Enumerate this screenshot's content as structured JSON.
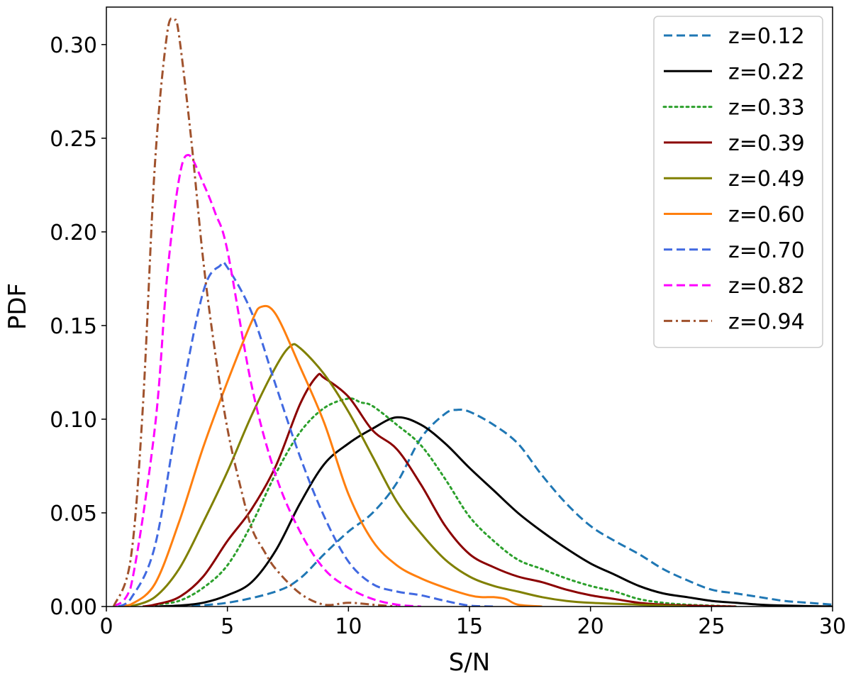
{
  "chart_data": {
    "type": "line",
    "title": "",
    "xlabel": "S/N",
    "ylabel": "PDF",
    "xlim": [
      0,
      30
    ],
    "ylim": [
      0,
      0.32
    ],
    "xticks": [
      0,
      5,
      10,
      15,
      20,
      25,
      30
    ],
    "xtick_labels": [
      "0",
      "5",
      "10",
      "15",
      "20",
      "25",
      "30"
    ],
    "yticks": [
      0,
      0.05,
      0.1,
      0.15,
      0.2,
      0.25,
      0.3
    ],
    "ytick_labels": [
      "0.00",
      "0.05",
      "0.10",
      "0.15",
      "0.20",
      "0.25",
      "0.30"
    ],
    "grid": false,
    "legend_position": "top-right",
    "series": [
      {
        "name": "z=0.12",
        "color": "#1f77b4",
        "style": "dashed",
        "x": [
          3,
          5,
          7,
          8,
          9,
          10,
          11,
          12,
          13,
          14,
          14.5,
          15,
          16,
          17,
          18,
          19,
          20,
          21,
          22,
          23,
          24,
          25,
          26,
          27,
          28,
          29,
          30
        ],
        "y": [
          0,
          0.002,
          0.008,
          0.015,
          0.028,
          0.04,
          0.05,
          0.066,
          0.09,
          0.103,
          0.105,
          0.104,
          0.097,
          0.087,
          0.07,
          0.055,
          0.043,
          0.035,
          0.028,
          0.02,
          0.014,
          0.009,
          0.007,
          0.005,
          0.003,
          0.002,
          0.001
        ]
      },
      {
        "name": "z=0.22",
        "color": "#000000",
        "style": "solid",
        "x": [
          2,
          3,
          4,
          5,
          6,
          7,
          8,
          9,
          10,
          11,
          12,
          13,
          14,
          15,
          16,
          17,
          18,
          19,
          20,
          21,
          22,
          23,
          24,
          25,
          26,
          27,
          28,
          30
        ],
        "y": [
          0,
          0.0005,
          0.002,
          0.006,
          0.013,
          0.03,
          0.055,
          0.076,
          0.087,
          0.095,
          0.101,
          0.097,
          0.087,
          0.074,
          0.062,
          0.05,
          0.04,
          0.031,
          0.023,
          0.017,
          0.011,
          0.007,
          0.005,
          0.003,
          0.002,
          0.001,
          0.0005,
          0
        ]
      },
      {
        "name": "z=0.33",
        "color": "#2ca02c",
        "style": "dotted",
        "x": [
          2,
          3,
          4,
          5,
          6,
          7,
          8,
          9,
          10,
          10.5,
          11,
          12,
          13,
          14,
          15,
          16,
          17,
          18,
          19,
          20,
          21,
          22,
          23,
          24,
          26
        ],
        "y": [
          0.001,
          0.003,
          0.01,
          0.022,
          0.044,
          0.071,
          0.093,
          0.106,
          0.111,
          0.109,
          0.107,
          0.097,
          0.086,
          0.068,
          0.048,
          0.035,
          0.025,
          0.02,
          0.015,
          0.011,
          0.008,
          0.004,
          0.002,
          0.001,
          0
        ]
      },
      {
        "name": "z=0.39",
        "color": "#8b0000",
        "style": "solid",
        "x": [
          1.5,
          2,
          3,
          4,
          5,
          6,
          7,
          8,
          8.7,
          9,
          10,
          11,
          12,
          13,
          14,
          15,
          16,
          17,
          18,
          19,
          20,
          21,
          22,
          23,
          24,
          26
        ],
        "y": [
          0,
          0.001,
          0.005,
          0.016,
          0.035,
          0.052,
          0.075,
          0.108,
          0.123,
          0.122,
          0.112,
          0.094,
          0.084,
          0.065,
          0.043,
          0.028,
          0.021,
          0.016,
          0.013,
          0.009,
          0.006,
          0.004,
          0.002,
          0.001,
          0.0005,
          0
        ]
      },
      {
        "name": "z=0.49",
        "color": "#808000",
        "style": "solid",
        "x": [
          1,
          2,
          3,
          4,
          5,
          6,
          7,
          7.6,
          8,
          9,
          10,
          11,
          12,
          13,
          14,
          15,
          16,
          17,
          18,
          19,
          20,
          22,
          24
        ],
        "y": [
          0,
          0.005,
          0.02,
          0.045,
          0.072,
          0.102,
          0.128,
          0.139,
          0.138,
          0.124,
          0.104,
          0.08,
          0.056,
          0.039,
          0.025,
          0.016,
          0.011,
          0.008,
          0.005,
          0.003,
          0.002,
          0.001,
          0
        ]
      },
      {
        "name": "z=0.60",
        "color": "#ff7f0e",
        "style": "solid",
        "x": [
          0.5,
          1,
          2,
          3,
          4,
          5,
          6,
          6.4,
          7,
          8,
          9,
          10,
          11,
          12,
          13,
          14,
          15,
          15.5,
          16,
          16.5,
          17,
          18
        ],
        "y": [
          0,
          0.001,
          0.012,
          0.045,
          0.085,
          0.12,
          0.152,
          0.16,
          0.156,
          0.128,
          0.098,
          0.06,
          0.035,
          0.022,
          0.015,
          0.01,
          0.006,
          0.005,
          0.005,
          0.004,
          0.001,
          0
        ]
      },
      {
        "name": "z=0.70",
        "color": "#4169e1",
        "style": "dashed",
        "x": [
          0.5,
          1,
          2,
          3,
          4,
          4.7,
          5,
          6,
          7,
          8,
          9,
          10,
          11,
          12,
          13,
          14,
          15,
          16
        ],
        "y": [
          0,
          0.004,
          0.032,
          0.105,
          0.168,
          0.182,
          0.181,
          0.157,
          0.118,
          0.08,
          0.048,
          0.024,
          0.012,
          0.008,
          0.006,
          0.003,
          0.0005,
          0
        ]
      },
      {
        "name": "z=0.82",
        "color": "#ff00ff",
        "style": "dashed",
        "x": [
          0.3,
          1,
          2,
          2.5,
          3,
          3.4,
          4,
          4.5,
          5,
          6,
          7,
          8,
          9,
          10,
          11,
          12,
          13
        ],
        "y": [
          0,
          0.01,
          0.095,
          0.175,
          0.228,
          0.241,
          0.226,
          0.21,
          0.19,
          0.118,
          0.07,
          0.04,
          0.02,
          0.01,
          0.004,
          0.001,
          0
        ]
      },
      {
        "name": "z=0.94",
        "color": "#a0522d",
        "style": "dashdot",
        "x": [
          0.3,
          1,
          1.5,
          2,
          2.5,
          2.8,
          3,
          3.5,
          4,
          4.5,
          5,
          5.5,
          6,
          6.5,
          7,
          8,
          9,
          10,
          11,
          12
        ],
        "y": [
          0,
          0.025,
          0.105,
          0.235,
          0.305,
          0.313,
          0.305,
          0.25,
          0.185,
          0.135,
          0.095,
          0.066,
          0.042,
          0.03,
          0.02,
          0.007,
          0.001,
          0.002,
          0.001,
          0
        ]
      }
    ]
  }
}
